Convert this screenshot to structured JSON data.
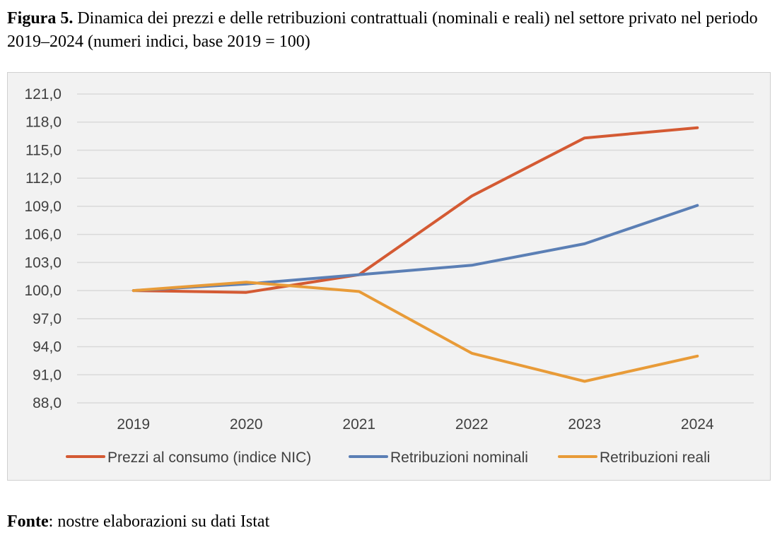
{
  "caption": {
    "label": "Figura 5.",
    "text": "Dinamica dei prezzi e delle retribuzioni contrattuali (nominali e reali) nel settore privato nel periodo 2019–2024 (numeri indici, base 2019 = 100)"
  },
  "source": {
    "label": "Fonte",
    "text": ": nostre elaborazioni su dati Istat"
  },
  "chart_data": {
    "type": "line",
    "title": "",
    "xlabel": "",
    "ylabel": "",
    "categories": [
      "2019",
      "2020",
      "2021",
      "2022",
      "2023",
      "2024"
    ],
    "ylim": [
      88,
      121
    ],
    "yticks": [
      88,
      91,
      94,
      97,
      100,
      103,
      106,
      109,
      112,
      115,
      118,
      121
    ],
    "ytick_labels": [
      "88,0",
      "91,0",
      "94,0",
      "97,0",
      "100,0",
      "103,0",
      "106,0",
      "109,0",
      "112,0",
      "115,0",
      "118,0",
      "121,0"
    ],
    "grid": true,
    "legend_position": "bottom",
    "series": [
      {
        "name": "Prezzi al consumo (indice NIC)",
        "color": "#d45a33",
        "values": [
          100.0,
          99.8,
          101.7,
          110.1,
          116.3,
          117.4
        ]
      },
      {
        "name": "Retribuzioni nominali",
        "color": "#5b7fb5",
        "values": [
          100.0,
          100.7,
          101.7,
          102.7,
          105.0,
          109.1
        ]
      },
      {
        "name": "Retribuzioni reali",
        "color": "#e89b38",
        "values": [
          100.0,
          100.9,
          99.9,
          93.3,
          90.3,
          93.0
        ]
      }
    ]
  }
}
